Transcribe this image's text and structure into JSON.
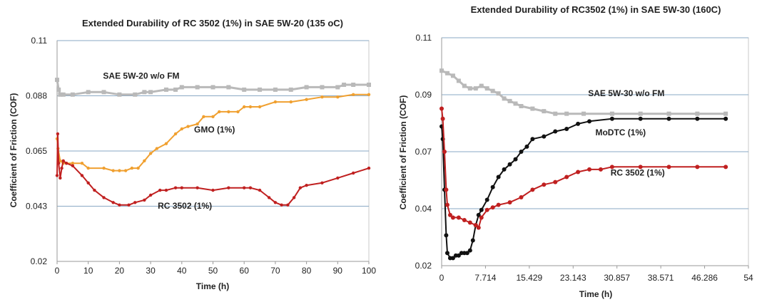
{
  "chart_data": [
    {
      "type": "line",
      "title": "Extended Durability of RC 3502 (1%) in SAE 5W-20 (135 oC)",
      "xlabel": "Time (h)",
      "ylabel": "Coefficient of Friction (COF)",
      "xlim": [
        0,
        100
      ],
      "ylim": [
        0.02,
        0.11
      ],
      "x_ticks": [
        "0",
        "10",
        "20",
        "30",
        "40",
        "50",
        "60",
        "70",
        "80",
        "90",
        "100"
      ],
      "y_ticks": [
        "0.02",
        "0.043",
        "0.065",
        "0.088",
        "0.11"
      ],
      "grid": true,
      "series": [
        {
          "name": "SAE 5W-20 w/o FM",
          "color": "#b9b9b9",
          "marker": "square",
          "x": [
            0,
            0.5,
            1,
            2,
            5,
            10,
            15,
            20,
            25,
            28,
            30,
            35,
            38,
            40,
            45,
            50,
            55,
            60,
            65,
            70,
            75,
            80,
            85,
            90,
            92,
            95,
            100
          ],
          "y": [
            0.094,
            0.09,
            0.088,
            0.088,
            0.088,
            0.089,
            0.089,
            0.088,
            0.088,
            0.089,
            0.089,
            0.09,
            0.09,
            0.091,
            0.091,
            0.091,
            0.091,
            0.09,
            0.09,
            0.09,
            0.09,
            0.091,
            0.091,
            0.091,
            0.092,
            0.092,
            0.092
          ]
        },
        {
          "name": "GMO (1%)",
          "color": "#f0a030",
          "marker": "dot",
          "x": [
            0,
            0.3,
            1,
            2,
            3,
            5,
            8,
            10,
            15,
            18,
            20,
            22,
            24,
            26,
            28,
            30,
            32,
            35,
            38,
            40,
            42,
            45,
            47,
            50,
            52,
            55,
            58,
            60,
            62,
            65,
            70,
            75,
            80,
            85,
            90,
            95,
            100
          ],
          "y": [
            0.07,
            0.066,
            0.061,
            0.06,
            0.06,
            0.06,
            0.06,
            0.058,
            0.058,
            0.057,
            0.057,
            0.057,
            0.058,
            0.058,
            0.061,
            0.064,
            0.066,
            0.068,
            0.072,
            0.074,
            0.075,
            0.076,
            0.079,
            0.079,
            0.081,
            0.081,
            0.081,
            0.083,
            0.083,
            0.083,
            0.085,
            0.085,
            0.086,
            0.087,
            0.087,
            0.088,
            0.088
          ]
        },
        {
          "name": "RC 3502 (1%)",
          "color": "#c02020",
          "marker": "dot",
          "x": [
            0,
            0.2,
            0.5,
            1,
            1.5,
            2,
            3,
            5,
            8,
            10,
            12,
            15,
            18,
            20,
            23,
            25,
            28,
            30,
            33,
            35,
            38,
            40,
            45,
            50,
            55,
            60,
            62,
            65,
            68,
            70,
            72,
            74,
            76,
            78,
            80,
            85,
            90,
            95,
            100
          ],
          "y": [
            0.055,
            0.072,
            0.06,
            0.054,
            0.058,
            0.061,
            0.06,
            0.059,
            0.055,
            0.052,
            0.049,
            0.046,
            0.044,
            0.043,
            0.043,
            0.044,
            0.045,
            0.047,
            0.049,
            0.049,
            0.05,
            0.05,
            0.05,
            0.049,
            0.05,
            0.05,
            0.05,
            0.049,
            0.046,
            0.044,
            0.043,
            0.043,
            0.046,
            0.05,
            0.051,
            0.052,
            0.054,
            0.056,
            0.058
          ]
        }
      ],
      "annotations": [
        {
          "text": "SAE 5W-20 w/o FM",
          "x": 27,
          "y": 0.0945
        },
        {
          "text": "GMO (1%)",
          "x": 50.5,
          "y": 0.0725
        },
        {
          "text": "RC 3502 (1%)",
          "x": 41,
          "y": 0.0415
        }
      ]
    },
    {
      "type": "line",
      "title": "Extended Durability of RC3502 (1%) in SAE 5W-30 (160C)",
      "xlabel": "Time (h)",
      "ylabel": "Coefficient of Friction (COF)",
      "xlim": [
        0,
        54
      ],
      "ylim": [
        0.02,
        0.11
      ],
      "x_ticks": [
        "0",
        "7.714",
        "15.429",
        "23.143",
        "30.857",
        "38.571",
        "46.286",
        "54"
      ],
      "y_ticks": [
        "0.02",
        "0.04",
        "0.07",
        "0.09",
        "0.11"
      ],
      "grid": true,
      "series": [
        {
          "name": "SAE 5W-30 w/o FM",
          "color": "#b9b9b9",
          "marker": "square",
          "x": [
            0,
            1,
            2,
            3,
            4,
            5,
            6,
            7,
            8,
            9,
            10,
            11,
            12,
            13,
            14,
            16,
            18,
            20,
            22,
            25,
            30,
            35,
            40,
            45,
            50
          ],
          "y": [
            0.097,
            0.096,
            0.095,
            0.093,
            0.091,
            0.09,
            0.09,
            0.091,
            0.09,
            0.089,
            0.088,
            0.086,
            0.085,
            0.084,
            0.083,
            0.082,
            0.081,
            0.08,
            0.08,
            0.08,
            0.08,
            0.08,
            0.08,
            0.08,
            0.08
          ]
        },
        {
          "name": "MoDTC (1%)",
          "color": "#111111",
          "marker": "dot",
          "x": [
            0,
            0.2,
            0.5,
            0.8,
            1,
            1.5,
            2,
            2.5,
            3,
            3.5,
            4,
            4.5,
            5,
            5.5,
            6,
            6.5,
            7,
            8,
            9,
            10,
            11,
            12,
            13,
            14,
            15,
            16,
            18,
            20,
            22,
            24,
            26,
            30,
            35,
            40,
            45,
            50
          ],
          "y": [
            0.075,
            0.07,
            0.05,
            0.032,
            0.025,
            0.023,
            0.023,
            0.024,
            0.024,
            0.025,
            0.025,
            0.025,
            0.026,
            0.03,
            0.036,
            0.04,
            0.042,
            0.046,
            0.051,
            0.055,
            0.058,
            0.06,
            0.062,
            0.065,
            0.067,
            0.07,
            0.071,
            0.073,
            0.074,
            0.076,
            0.077,
            0.078,
            0.078,
            0.078,
            0.078,
            0.078
          ]
        },
        {
          "name": "RC 3502 (1%)",
          "color": "#c02020",
          "marker": "dot",
          "x": [
            0,
            0.2,
            0.5,
            0.8,
            1,
            1.5,
            2,
            3,
            4,
            5,
            6,
            6.5,
            7,
            8,
            9,
            10,
            12,
            14,
            16,
            18,
            20,
            22,
            24,
            26,
            28,
            30,
            35,
            40,
            45,
            50
          ],
          "y": [
            0.082,
            0.078,
            0.065,
            0.05,
            0.044,
            0.04,
            0.039,
            0.039,
            0.038,
            0.037,
            0.036,
            0.035,
            0.039,
            0.042,
            0.043,
            0.044,
            0.045,
            0.047,
            0.05,
            0.052,
            0.053,
            0.055,
            0.057,
            0.058,
            0.058,
            0.059,
            0.059,
            0.059,
            0.059,
            0.059
          ]
        }
      ],
      "annotations": [
        {
          "text": "SAE 5W-30 w/o FM",
          "x": 32.5,
          "y": 0.087
        },
        {
          "text": "MoDTC (1%)",
          "x": 31.5,
          "y": 0.0715
        },
        {
          "text": "RC 3502 (1%)",
          "x": 34.5,
          "y": 0.0556
        }
      ]
    }
  ]
}
